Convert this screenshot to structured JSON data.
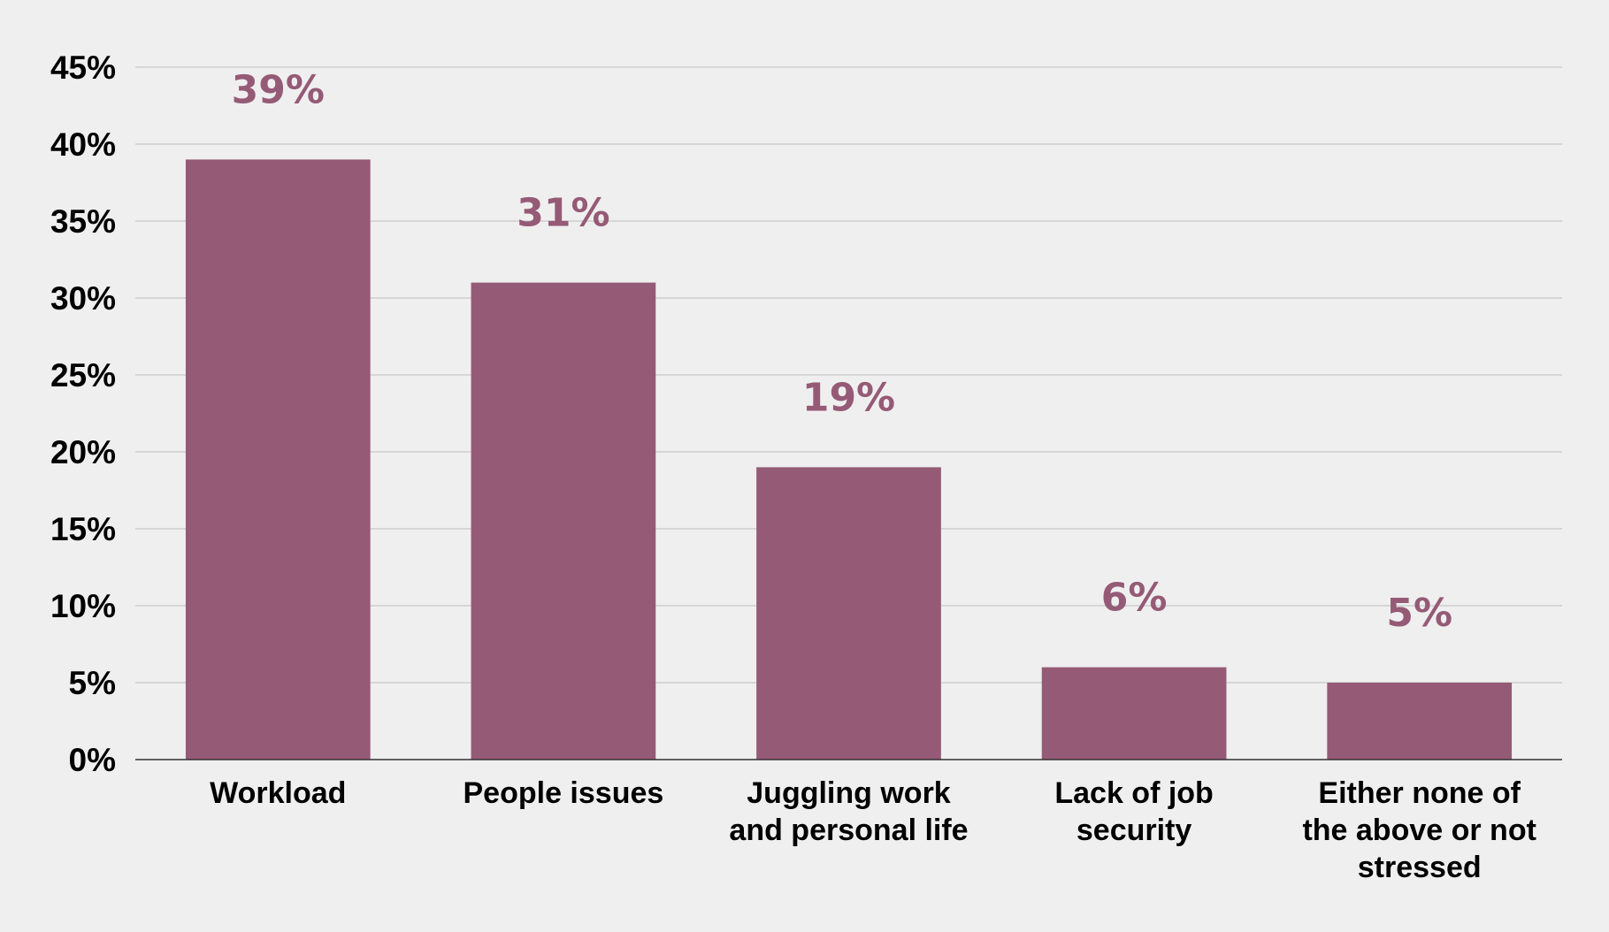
{
  "chart_data": {
    "type": "bar",
    "categories": [
      [
        "Workload"
      ],
      [
        "People issues"
      ],
      [
        "Juggling work",
        "and personal life"
      ],
      [
        "Lack of job",
        "security"
      ],
      [
        "Either none of",
        "the above or not",
        "stressed"
      ]
    ],
    "values": [
      39,
      31,
      19,
      6,
      5
    ],
    "value_labels": [
      "39%",
      "31%",
      "19%",
      "6%",
      "5%"
    ],
    "y_ticks": [
      "0%",
      "5%",
      "10%",
      "15%",
      "20%",
      "25%",
      "30%",
      "35%",
      "40%",
      "45%"
    ],
    "ylim": [
      0,
      45
    ],
    "title": "",
    "xlabel": "",
    "ylabel": "",
    "grid": true,
    "legend": "none",
    "colors": {
      "bar": "#955a76",
      "label": "#955a76",
      "background": "#efefef"
    }
  }
}
